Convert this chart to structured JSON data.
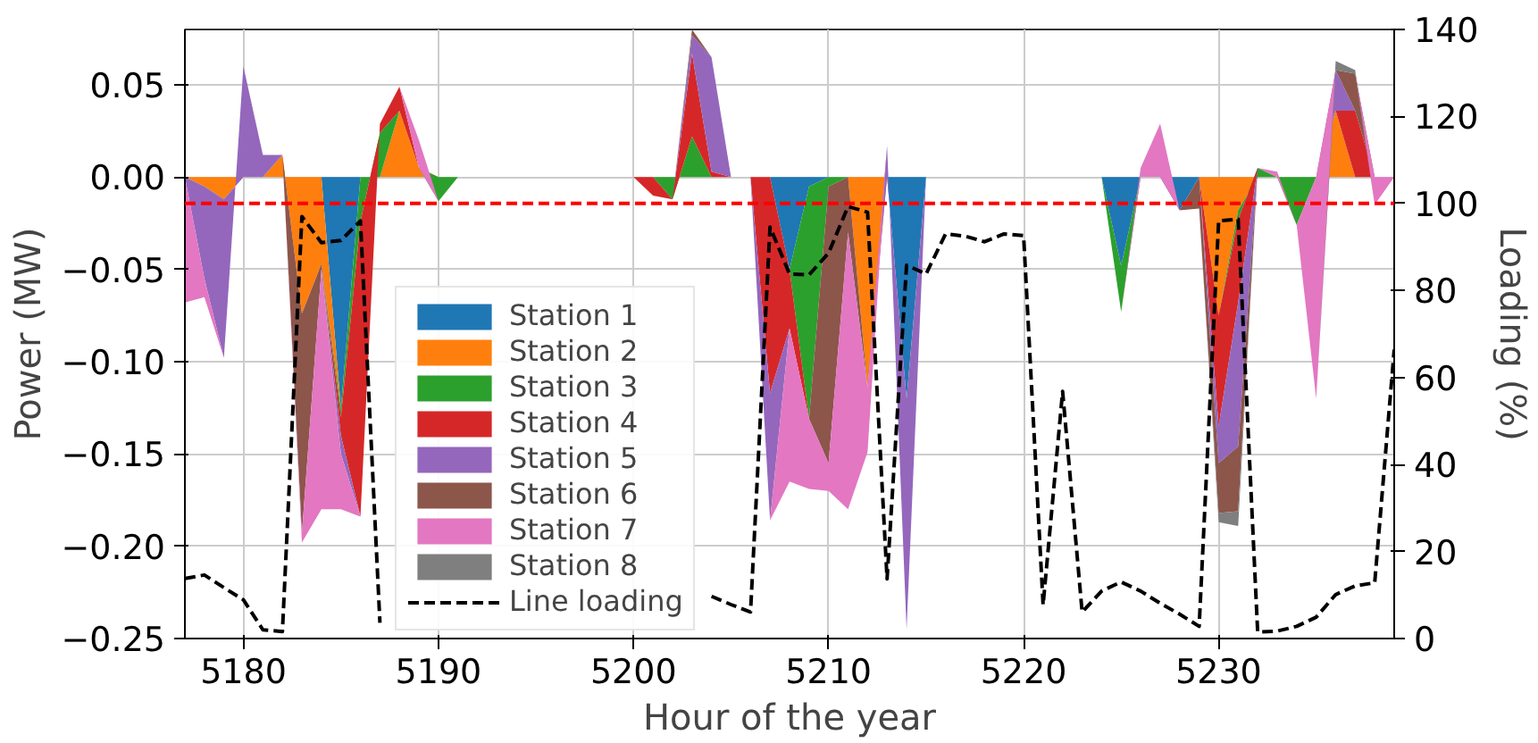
{
  "chart_data": {
    "type": "area",
    "stacked": true,
    "xlabel": "Hour of the year",
    "ylabel": "Power (MW)",
    "y2label": "Loading (%)",
    "x": [
      5177,
      5178,
      5179,
      5180,
      5181,
      5182,
      5183,
      5184,
      5185,
      5186,
      5187,
      5188,
      5189,
      5190,
      5191,
      5192,
      5193,
      5194,
      5195,
      5196,
      5197,
      5198,
      5199,
      5200,
      5201,
      5202,
      5203,
      5204,
      5205,
      5206,
      5207,
      5208,
      5209,
      5210,
      5211,
      5212,
      5213,
      5214,
      5215,
      5216,
      5217,
      5218,
      5219,
      5220,
      5221,
      5222,
      5223,
      5224,
      5225,
      5226,
      5227,
      5228,
      5229,
      5230,
      5231,
      5232,
      5233,
      5234,
      5235,
      5236,
      5237,
      5238,
      5239
    ],
    "xlim": [
      5177,
      5239
    ],
    "xticks": [
      5180,
      5190,
      5200,
      5210,
      5220,
      5230
    ],
    "ylim": [
      -0.25,
      0.08
    ],
    "yticks": [
      {
        "value": -0.25,
        "label": "−0.25"
      },
      {
        "value": -0.2,
        "label": "−0.20"
      },
      {
        "value": -0.15,
        "label": "−0.15"
      },
      {
        "value": -0.1,
        "label": "−0.10"
      },
      {
        "value": -0.05,
        "label": "−0.05"
      },
      {
        "value": 0,
        "label": "0.00"
      },
      {
        "value": 0.05,
        "label": "0.05"
      }
    ],
    "y2lim": [
      0,
      140
    ],
    "y2ticks": [
      0,
      20,
      40,
      60,
      80,
      100,
      120,
      140
    ],
    "grid": true,
    "legend": "bottom left",
    "ref_lines": [
      {
        "axis": "y2",
        "value": 100,
        "color": "#ff0000",
        "line_style": "dashed"
      }
    ],
    "series": [
      {
        "name": "Station 1",
        "color": "#1f77b4",
        "values": [
          null,
          null,
          null,
          null,
          null,
          null,
          null,
          0,
          -0.125,
          0,
          null,
          null,
          null,
          null,
          null,
          null,
          null,
          null,
          null,
          null,
          null,
          null,
          null,
          null,
          null,
          null,
          null,
          null,
          null,
          null,
          0,
          -0.05,
          -0.005,
          0,
          null,
          null,
          0,
          -0.12,
          0,
          null,
          null,
          null,
          null,
          null,
          null,
          null,
          null,
          0,
          -0.048,
          0,
          0,
          -0.018,
          0,
          null,
          null,
          null,
          null,
          null,
          null,
          null,
          null,
          null,
          null
        ]
      },
      {
        "name": "Station 2",
        "color": "#ff7f0e",
        "values": [
          0,
          -0.005,
          -0.012,
          0,
          0,
          0.012,
          -0.074,
          -0.047,
          0,
          null,
          0,
          0.036,
          0.005,
          0,
          null,
          null,
          null,
          null,
          null,
          null,
          null,
          null,
          null,
          null,
          null,
          null,
          null,
          null,
          null,
          null,
          null,
          null,
          null,
          null,
          0,
          -0.114,
          0,
          null,
          null,
          null,
          null,
          null,
          null,
          null,
          null,
          null,
          null,
          null,
          null,
          null,
          null,
          null,
          0,
          -0.075,
          -0.018,
          0,
          null,
          null,
          0,
          0.036,
          0,
          null,
          null
        ]
      },
      {
        "name": "Station 3",
        "color": "#2ca02c",
        "values": [
          null,
          null,
          null,
          null,
          null,
          null,
          null,
          0,
          -0.005,
          -0.024,
          0.024,
          0,
          0,
          -0.013,
          0,
          null,
          null,
          null,
          null,
          null,
          null,
          null,
          null,
          null,
          0,
          -0.012,
          0.022,
          0,
          null,
          null,
          null,
          0,
          -0.126,
          -0.005,
          0,
          null,
          null,
          null,
          null,
          null,
          null,
          null,
          null,
          null,
          null,
          null,
          null,
          0,
          -0.025,
          0,
          null,
          null,
          null,
          0,
          -0.005,
          0.005,
          0,
          -0.026,
          0,
          null,
          null,
          null,
          null
        ]
      },
      {
        "name": "Station 4",
        "color": "#d62728",
        "values": [
          null,
          null,
          null,
          null,
          null,
          null,
          null,
          0,
          -0.01,
          -0.16,
          0.005,
          0.013,
          0,
          null,
          null,
          null,
          null,
          null,
          null,
          null,
          null,
          null,
          null,
          0,
          -0.01,
          0,
          0.045,
          0.003,
          0,
          0,
          -0.117,
          -0.032,
          0,
          null,
          null,
          null,
          null,
          null,
          null,
          null,
          null,
          null,
          null,
          null,
          null,
          null,
          null,
          null,
          null,
          null,
          null,
          null,
          0,
          -0.06,
          -0.045,
          0,
          null,
          null,
          null,
          0,
          0.036,
          0,
          null
        ]
      },
      {
        "name": "Station 5",
        "color": "#9467bd",
        "values": [
          0,
          -0.05,
          -0.086,
          0.06,
          0.012,
          0,
          null,
          0,
          -0.01,
          0,
          null,
          null,
          null,
          null,
          null,
          null,
          null,
          null,
          null,
          null,
          null,
          null,
          null,
          null,
          null,
          0,
          0.01,
          0.062,
          0,
          0,
          -0.069,
          0,
          null,
          null,
          null,
          0,
          0.017,
          -0.125,
          0,
          null,
          null,
          null,
          null,
          null,
          null,
          null,
          null,
          null,
          null,
          null,
          null,
          null,
          0,
          -0.02,
          -0.078,
          0,
          null,
          null,
          0,
          0.022,
          0,
          null,
          null
        ]
      },
      {
        "name": "Station 6",
        "color": "#8c564b",
        "values": [
          null,
          null,
          null,
          null,
          null,
          0,
          -0.119,
          -0.003,
          0,
          null,
          null,
          null,
          null,
          null,
          null,
          null,
          null,
          null,
          null,
          null,
          null,
          null,
          null,
          null,
          null,
          0,
          0.003,
          0,
          null,
          null,
          null,
          null,
          0,
          -0.15,
          -0.03,
          0,
          null,
          null,
          null,
          null,
          null,
          null,
          null,
          null,
          null,
          null,
          null,
          null,
          null,
          null,
          null,
          0,
          -0.017,
          -0.027,
          -0.035,
          0,
          null,
          null,
          null,
          0,
          0.02,
          0,
          null
        ]
      },
      {
        "name": "Station 7",
        "color": "#e377c2",
        "values": [
          -0.068,
          -0.01,
          0,
          null,
          null,
          0,
          -0.005,
          -0.13,
          -0.03,
          0,
          null,
          0,
          0.015,
          0,
          null,
          null,
          null,
          null,
          null,
          null,
          null,
          null,
          null,
          null,
          null,
          null,
          null,
          null,
          null,
          null,
          0,
          -0.083,
          -0.038,
          -0.015,
          -0.15,
          -0.035,
          0,
          null,
          null,
          null,
          null,
          null,
          null,
          null,
          null,
          null,
          null,
          null,
          0,
          0.005,
          0.029,
          0,
          null,
          null,
          null,
          0,
          0.003,
          0,
          -0.12,
          0,
          0,
          -0.015,
          0
        ]
      },
      {
        "name": "Station 8",
        "color": "#7f7f7f",
        "values": [
          null,
          null,
          null,
          null,
          null,
          null,
          null,
          null,
          null,
          null,
          null,
          null,
          null,
          null,
          null,
          null,
          null,
          null,
          null,
          null,
          null,
          null,
          null,
          null,
          null,
          null,
          null,
          null,
          null,
          null,
          null,
          null,
          null,
          null,
          null,
          null,
          null,
          null,
          null,
          null,
          null,
          null,
          null,
          null,
          null,
          null,
          null,
          null,
          null,
          null,
          null,
          null,
          0,
          -0.005,
          -0.008,
          0,
          null,
          null,
          0,
          0.005,
          0.002,
          0,
          null
        ]
      },
      {
        "name": "Line loading",
        "type": "line",
        "axis": "y2",
        "line_style": "dashed",
        "color": "#000000",
        "values": [
          13.8,
          14.6,
          11.7,
          8.9,
          2,
          1.6,
          97,
          91,
          91.5,
          96,
          3.6,
          null,
          null,
          null,
          null,
          null,
          null,
          null,
          null,
          null,
          null,
          null,
          null,
          null,
          null,
          null,
          null,
          9.7,
          7.8,
          6.1,
          94.6,
          83.8,
          83.6,
          88.6,
          99.3,
          98,
          13.7,
          85.8,
          83.8,
          93,
          92.5,
          91.2,
          93,
          92.6,
          7.7,
          56.8,
          6.1,
          10.9,
          13,
          10.9,
          8.1,
          5.6,
          2.8,
          96,
          96.4,
          1.5,
          1.7,
          2.8,
          4.9,
          10.1,
          12.1,
          12.8,
          66.4
        ]
      }
    ]
  }
}
